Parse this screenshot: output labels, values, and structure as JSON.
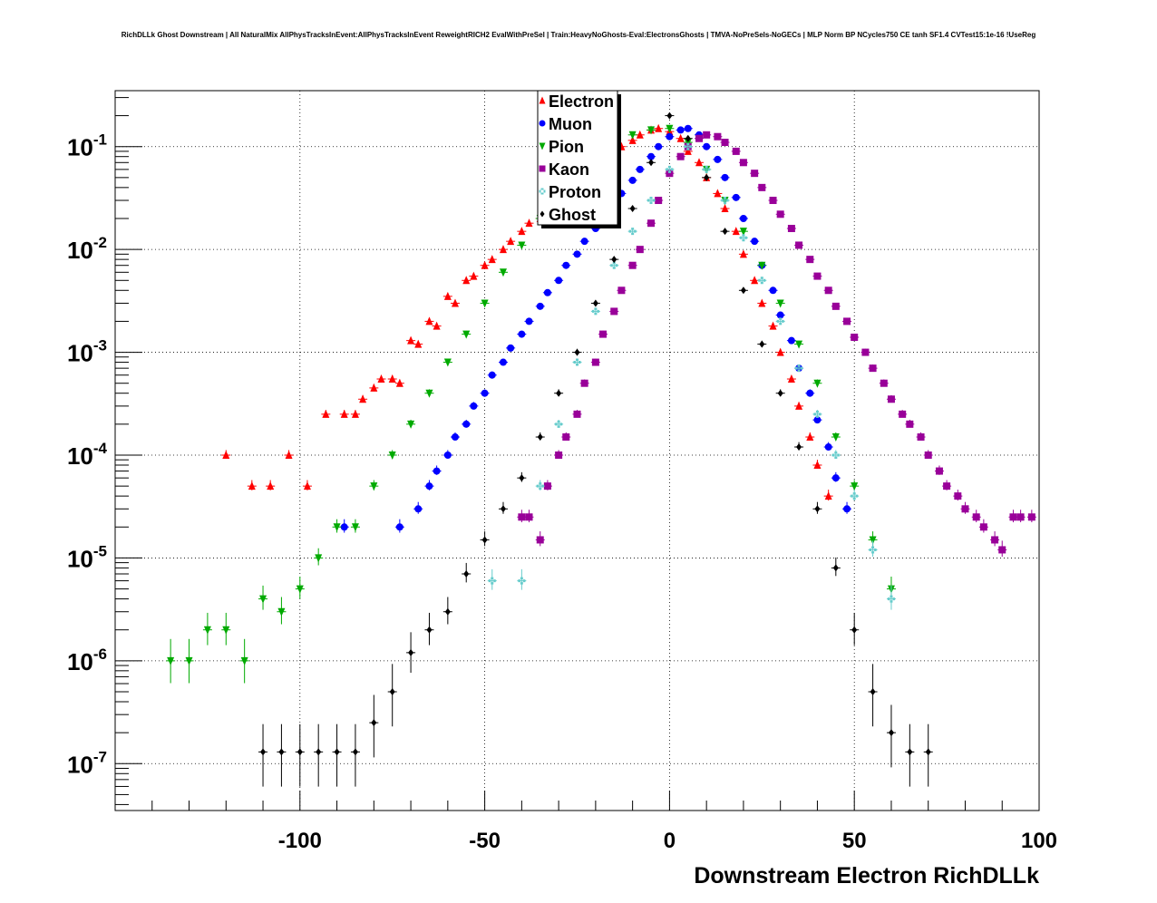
{
  "chart_data": {
    "type": "scatter",
    "title": "RichDLLk Ghost Downstream | All NaturalMix AllPhysTracksInEvent:AllPhysTracksInEvent ReweightRICH2 EvalWithPreSel | Train:HeavyNoGhosts-Eval:ElectronsGhosts | TMVA-NoPreSels-NoGECs | MLP Norm BP NCycles750 CE tanh SF1.4 CVTest15:1e-16 !UseReg",
    "xlabel": "Downstream Electron RichDLLk",
    "ylabel": "",
    "xlim": [
      -150,
      100
    ],
    "ylim": [
      3.5e-08,
      0.35
    ],
    "y_scale": "log",
    "grid": true,
    "legend_position": "top-center",
    "x_ticks": [
      -100,
      -50,
      0,
      50,
      100
    ],
    "x_tick_labels": [
      "-100",
      "-50",
      "0",
      "50",
      "100"
    ],
    "y_ticks": [
      1e-07,
      1e-06,
      1e-05,
      0.0001,
      0.001,
      0.01,
      0.1
    ],
    "y_tick_base": [
      "10",
      "10",
      "10",
      "10",
      "10",
      "10",
      "10"
    ],
    "y_tick_exp": [
      "-7",
      "-6",
      "-5",
      "-4",
      "-3",
      "-2",
      "-1"
    ],
    "series": [
      {
        "name": "Electron",
        "color": "#ff0000",
        "marker": "triangle-up",
        "x": [
          -120,
          -113,
          -108,
          -103,
          -98,
          -93,
          -88,
          -85,
          -83,
          -80,
          -78,
          -75,
          -73,
          -70,
          -68,
          -65,
          -63,
          -60,
          -58,
          -55,
          -53,
          -50,
          -48,
          -45,
          -43,
          -40,
          -38,
          -35,
          -33,
          -30,
          -28,
          -25,
          -23,
          -20,
          -18,
          -15,
          -13,
          -10,
          -8,
          -5,
          -3,
          0,
          3,
          5,
          8,
          10,
          13,
          15,
          18,
          20,
          23,
          25,
          28,
          30,
          33,
          35,
          38,
          40,
          43
        ],
        "y": [
          0.0001,
          5e-05,
          5e-05,
          0.0001,
          5e-05,
          0.00025,
          0.00025,
          0.00025,
          0.00035,
          0.00045,
          0.00055,
          0.00055,
          0.0005,
          0.0013,
          0.0012,
          0.002,
          0.0018,
          0.0035,
          0.003,
          0.005,
          0.0055,
          0.007,
          0.008,
          0.01,
          0.012,
          0.015,
          0.018,
          0.02,
          0.025,
          0.03,
          0.035,
          0.045,
          0.05,
          0.06,
          0.07,
          0.08,
          0.1,
          0.115,
          0.13,
          0.145,
          0.15,
          0.14,
          0.12,
          0.09,
          0.07,
          0.05,
          0.035,
          0.025,
          0.015,
          0.009,
          0.005,
          0.003,
          0.0018,
          0.001,
          0.00055,
          0.0003,
          0.00015,
          8e-05,
          4e-05
        ]
      },
      {
        "name": "Muon",
        "color": "#0000ff",
        "marker": "circle",
        "x": [
          -88,
          -73,
          -68,
          -65,
          -63,
          -60,
          -58,
          -55,
          -53,
          -50,
          -48,
          -45,
          -43,
          -40,
          -38,
          -35,
          -33,
          -30,
          -28,
          -25,
          -23,
          -20,
          -18,
          -15,
          -13,
          -10,
          -8,
          -5,
          -3,
          0,
          3,
          5,
          8,
          10,
          13,
          15,
          18,
          20,
          23,
          25,
          28,
          30,
          33,
          35,
          38,
          40,
          43,
          45,
          48
        ],
        "y": [
          2e-05,
          2e-05,
          3e-05,
          5e-05,
          7e-05,
          0.0001,
          0.00015,
          0.0002,
          0.0003,
          0.0004,
          0.0006,
          0.0008,
          0.0011,
          0.0015,
          0.002,
          0.0028,
          0.0038,
          0.005,
          0.007,
          0.009,
          0.012,
          0.016,
          0.021,
          0.028,
          0.035,
          0.047,
          0.06,
          0.08,
          0.1,
          0.125,
          0.145,
          0.15,
          0.13,
          0.1,
          0.075,
          0.05,
          0.032,
          0.02,
          0.012,
          0.007,
          0.004,
          0.0023,
          0.0013,
          0.0007,
          0.0004,
          0.00022,
          0.00012,
          6e-05,
          3e-05
        ]
      },
      {
        "name": "Pion",
        "color": "#00aa00",
        "marker": "triangle-down",
        "x": [
          -135,
          -130,
          -125,
          -120,
          -115,
          -110,
          -105,
          -100,
          -95,
          -90,
          -85,
          -80,
          -75,
          -70,
          -65,
          -60,
          -55,
          -50,
          -45,
          -40,
          -35,
          -30,
          -25,
          -20,
          -15,
          -10,
          -5,
          0,
          5,
          10,
          15,
          20,
          25,
          30,
          35,
          40,
          45,
          50,
          55,
          60
        ],
        "y": [
          1e-06,
          1e-06,
          2e-06,
          2e-06,
          1e-06,
          4e-06,
          3e-06,
          5e-06,
          1e-05,
          2e-05,
          2e-05,
          5e-05,
          0.0001,
          0.0002,
          0.0004,
          0.0008,
          0.0015,
          0.003,
          0.006,
          0.011,
          0.02,
          0.035,
          0.055,
          0.08,
          0.11,
          0.13,
          0.145,
          0.15,
          0.11,
          0.06,
          0.03,
          0.015,
          0.007,
          0.003,
          0.0012,
          0.0005,
          0.00015,
          5e-05,
          1.5e-05,
          5e-06
        ]
      },
      {
        "name": "Kaon",
        "color": "#990099",
        "marker": "square",
        "x": [
          -40,
          -38,
          -35,
          -33,
          -30,
          -28,
          -25,
          -23,
          -20,
          -18,
          -15,
          -13,
          -10,
          -8,
          -5,
          -3,
          0,
          3,
          5,
          8,
          10,
          13,
          15,
          18,
          20,
          23,
          25,
          28,
          30,
          33,
          35,
          38,
          40,
          43,
          45,
          48,
          50,
          53,
          55,
          58,
          60,
          63,
          65,
          68,
          70,
          73,
          75,
          78,
          80,
          83,
          85,
          88,
          90,
          93,
          95,
          98
        ],
        "y": [
          2.5e-05,
          2.5e-05,
          1.5e-05,
          5e-05,
          0.0001,
          0.00015,
          0.00025,
          0.0005,
          0.0008,
          0.0015,
          0.0025,
          0.004,
          0.007,
          0.01,
          0.018,
          0.03,
          0.055,
          0.08,
          0.1,
          0.12,
          0.13,
          0.125,
          0.11,
          0.09,
          0.07,
          0.055,
          0.04,
          0.03,
          0.022,
          0.016,
          0.011,
          0.008,
          0.0055,
          0.004,
          0.0028,
          0.002,
          0.0014,
          0.001,
          0.0007,
          0.0005,
          0.00035,
          0.00025,
          0.0002,
          0.00015,
          0.0001,
          7e-05,
          5e-05,
          4e-05,
          3e-05,
          2.5e-05,
          2e-05,
          1.5e-05,
          1.2e-05,
          2.5e-05,
          2.5e-05,
          2.5e-05
        ]
      },
      {
        "name": "Proton",
        "color": "#66cccc",
        "marker": "cross",
        "x": [
          -48,
          -40,
          -35,
          -30,
          -25,
          -20,
          -15,
          -10,
          -5,
          0,
          5,
          10,
          15,
          20,
          25,
          30,
          35,
          40,
          45,
          50,
          55,
          60
        ],
        "y": [
          6e-06,
          6e-06,
          5e-05,
          0.0002,
          0.0008,
          0.0025,
          0.007,
          0.015,
          0.03,
          0.06,
          0.1,
          0.06,
          0.03,
          0.013,
          0.005,
          0.002,
          0.0007,
          0.00025,
          0.0001,
          4e-05,
          1.2e-05,
          4e-06
        ]
      },
      {
        "name": "Ghost",
        "color": "#000000",
        "marker": "diamond",
        "x": [
          -110,
          -105,
          -100,
          -95,
          -90,
          -85,
          -80,
          -75,
          -70,
          -65,
          -60,
          -55,
          -50,
          -45,
          -40,
          -35,
          -30,
          -25,
          -20,
          -15,
          -10,
          -5,
          0,
          5,
          10,
          15,
          20,
          25,
          30,
          35,
          40,
          45,
          50,
          55,
          60,
          65,
          70
        ],
        "y": [
          1.3e-07,
          1.3e-07,
          1.3e-07,
          1.3e-07,
          1.3e-07,
          1.3e-07,
          2.5e-07,
          5e-07,
          1.2e-06,
          2e-06,
          3e-06,
          7e-06,
          1.5e-05,
          3e-05,
          6e-05,
          0.00015,
          0.0004,
          0.001,
          0.003,
          0.008,
          0.025,
          0.07,
          0.2,
          0.12,
          0.05,
          0.015,
          0.004,
          0.0012,
          0.0004,
          0.00012,
          3e-05,
          8e-06,
          2e-06,
          5e-07,
          2e-07,
          1.3e-07,
          1.3e-07
        ]
      }
    ]
  }
}
